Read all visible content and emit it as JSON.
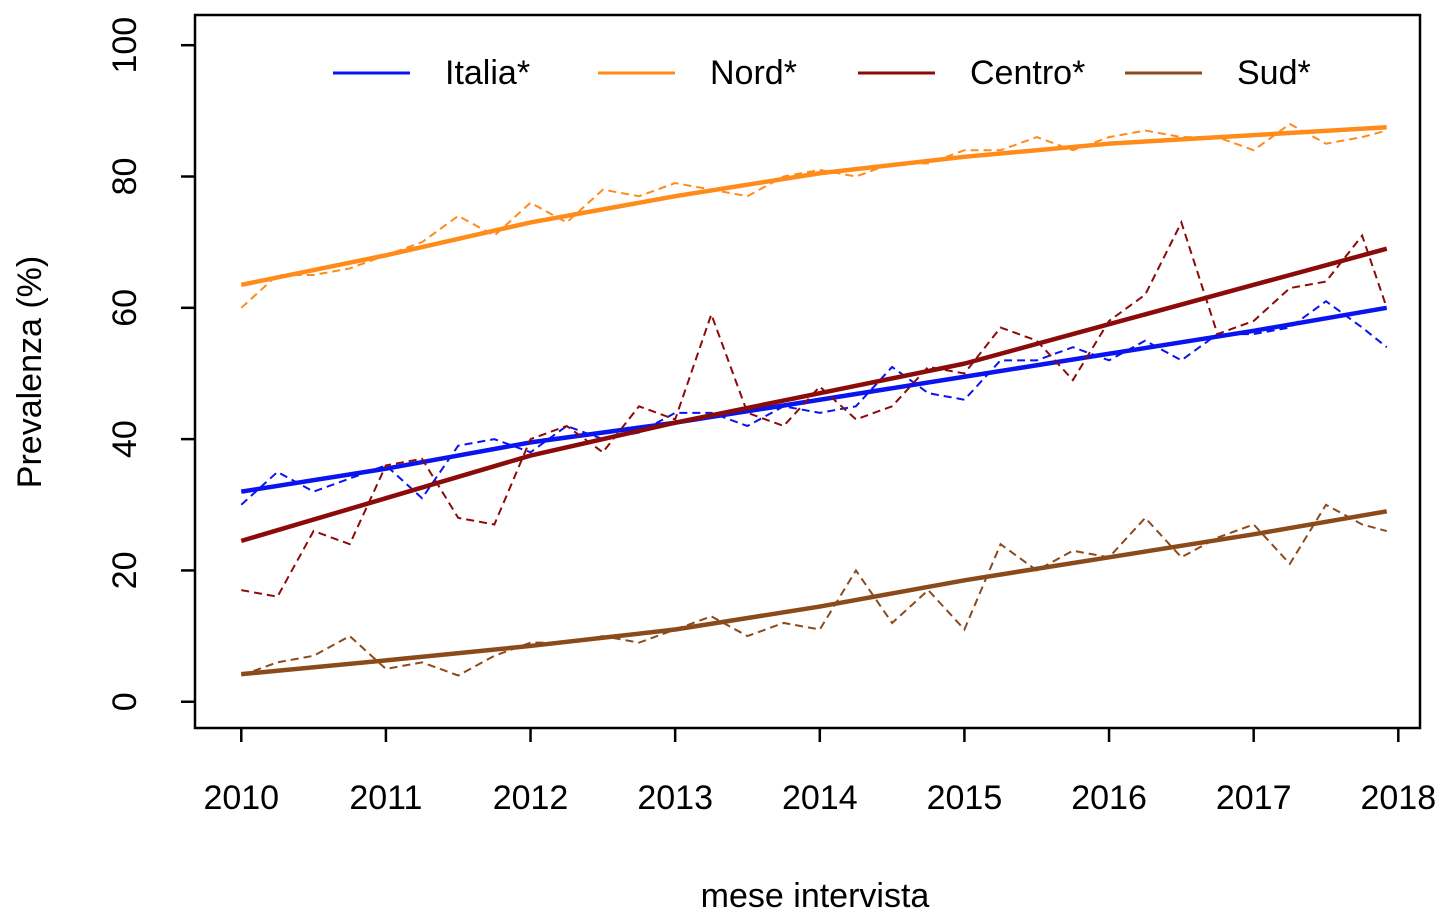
{
  "chart_data": {
    "type": "line",
    "x_label": "mese intervista",
    "y_label": "Prevalenza (%)",
    "xlim": [
      2009.68,
      2018.15
    ],
    "ylim": [
      -4,
      104.6
    ],
    "xticks": [
      2010,
      2011,
      2012,
      2013,
      2014,
      2015,
      2016,
      2017,
      2018
    ],
    "yticks": [
      0,
      20,
      40,
      60,
      80,
      100
    ],
    "grid": false,
    "legend": "top",
    "x": [
      2010,
      2010.25,
      2010.5,
      2010.75,
      2011,
      2011.25,
      2011.5,
      2011.75,
      2012,
      2012.25,
      2012.5,
      2012.75,
      2013,
      2013.25,
      2013.5,
      2013.75,
      2014,
      2014.25,
      2014.5,
      2014.75,
      2015,
      2015.25,
      2015.5,
      2015.75,
      2016,
      2016.25,
      2016.5,
      2016.75,
      2017,
      2017.25,
      2017.5,
      2017.75,
      2017.92
    ],
    "trend_x": [
      2010,
      2011,
      2012,
      2013,
      2014,
      2015,
      2016,
      2017,
      2017.92
    ],
    "series": [
      {
        "name": "Italia*",
        "color": "#0a14f0",
        "values": [
          30,
          35,
          32,
          34,
          36,
          31,
          39,
          40,
          38,
          42,
          40,
          41,
          44,
          44,
          42,
          45,
          44,
          45,
          51,
          47,
          46,
          52,
          52,
          54,
          52,
          55,
          52,
          56,
          56,
          57,
          61,
          57,
          54
        ],
        "trend": [
          32,
          35.5,
          39.5,
          42.5,
          46,
          49.5,
          53,
          56.5,
          60
        ]
      },
      {
        "name": "Nord*",
        "color": "#ff8c1a",
        "values": [
          60,
          65,
          65,
          66,
          68,
          70,
          74,
          71,
          76,
          73,
          78,
          77,
          79,
          78,
          77,
          80,
          81,
          80,
          82,
          82,
          84,
          84,
          86,
          84,
          86,
          87,
          86,
          86,
          84,
          88,
          85,
          86,
          87
        ],
        "trend": [
          63.5,
          68,
          73,
          77,
          80.5,
          83,
          85,
          86.3,
          87.5
        ]
      },
      {
        "name": "Centro*",
        "color": "#8b0a0a",
        "values": [
          17,
          16,
          26,
          24,
          36,
          37,
          28,
          27,
          40,
          42,
          38,
          45,
          43,
          59,
          44,
          42,
          48,
          43,
          45,
          51,
          50,
          57,
          55,
          49,
          58,
          62,
          73,
          56,
          58,
          63,
          64,
          71,
          60
        ],
        "trend": [
          24.5,
          31,
          37.5,
          42.5,
          47,
          51.5,
          57.5,
          63.5,
          69
        ]
      },
      {
        "name": "Sud*",
        "color": "#8b4a1a",
        "values": [
          4,
          6,
          7,
          10,
          5,
          6,
          4,
          7,
          9,
          9,
          10,
          9,
          11,
          13,
          10,
          12,
          11,
          20,
          12,
          17,
          11,
          24,
          20,
          23,
          22,
          28,
          22,
          25,
          27,
          21,
          30,
          27,
          26
        ],
        "trend": [
          4.2,
          6.3,
          8.5,
          11,
          14.5,
          18.5,
          22,
          25.5,
          29
        ]
      }
    ]
  }
}
